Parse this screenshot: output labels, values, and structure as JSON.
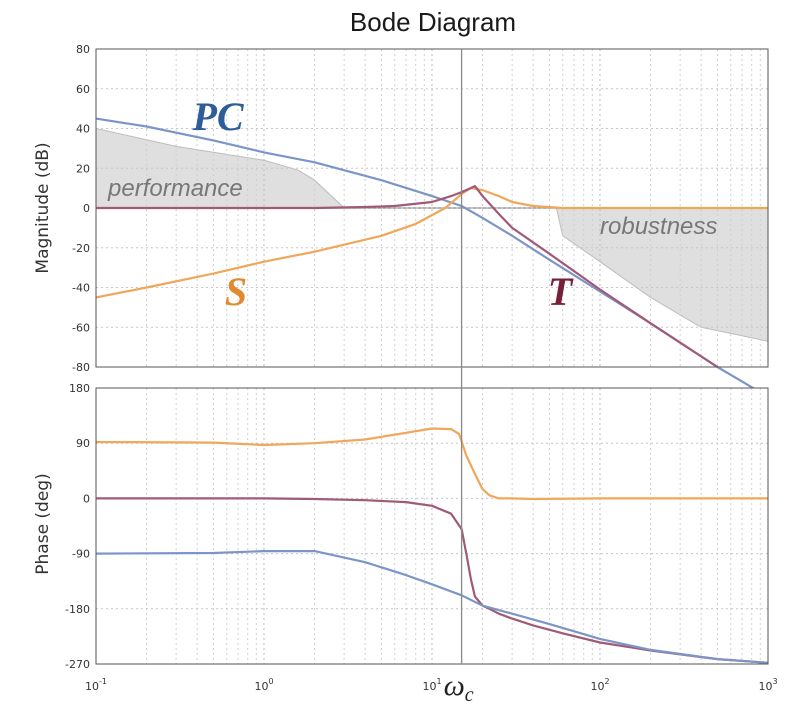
{
  "chart_data": {
    "type": "line",
    "title": "Bode Diagram",
    "xscale": "log",
    "xlim": [
      0.1,
      1000
    ],
    "x_ticks": [
      {
        "base": "10",
        "exp": "-1"
      },
      {
        "base": "10",
        "exp": "0"
      },
      {
        "base": "10",
        "exp": "1"
      },
      {
        "base": "10",
        "exp": "2"
      },
      {
        "base": "10",
        "exp": "3"
      }
    ],
    "crossover": {
      "x": 15,
      "label": "ω",
      "subscript": "c"
    },
    "grid": true,
    "magnitude_panel": {
      "ylabel": "Magnitude (dB)",
      "ylim": [
        -80,
        80
      ],
      "yticks": [
        "80",
        "60",
        "40",
        "20",
        "0",
        "-20",
        "-40",
        "-60",
        "-80"
      ],
      "series": [
        {
          "name": "PC",
          "color": "#7b95c8",
          "label_color": "#2f5d9a",
          "x": [
            0.1,
            0.2,
            0.5,
            1,
            2,
            5,
            10,
            15,
            20,
            30,
            50,
            100,
            200,
            500,
            1000
          ],
          "y": [
            45,
            41,
            34,
            28,
            23,
            14,
            6,
            1,
            -5,
            -14,
            -26,
            -42,
            -58,
            -80,
            -95
          ]
        },
        {
          "name": "S",
          "color": "#efa75a",
          "label_color": "#e0892e",
          "x": [
            0.1,
            0.2,
            0.5,
            1,
            2,
            5,
            8,
            12,
            15,
            17,
            20,
            25,
            30,
            40,
            60,
            100,
            1000
          ],
          "y": [
            -45,
            -40,
            -33,
            -27,
            -22,
            -14,
            -8,
            0,
            7,
            10,
            9,
            6,
            3,
            1,
            0,
            0,
            0
          ]
        },
        {
          "name": "T",
          "color": "#a05a78",
          "label_color": "#7a1f3a",
          "x": [
            0.1,
            1,
            2,
            4,
            6,
            10,
            13,
            15,
            17,
            18,
            20,
            25,
            30,
            50,
            100,
            200,
            500
          ],
          "y": [
            0,
            0,
            0,
            0.5,
            1,
            3,
            6,
            8,
            10,
            11,
            6,
            -3,
            -10,
            -23,
            -41,
            -58,
            -80
          ]
        }
      ],
      "regions": [
        {
          "name": "performance",
          "boundary_x": [
            0.1,
            0.3,
            1,
            1.6,
            2,
            3
          ],
          "boundary_y": [
            40,
            31,
            24,
            19,
            14,
            0
          ]
        },
        {
          "name": "robustness",
          "boundary_x": [
            55,
            60,
            100,
            200,
            400,
            1000
          ],
          "boundary_y": [
            0,
            -14,
            -27,
            -45,
            -60,
            -67
          ]
        }
      ]
    },
    "phase_panel": {
      "ylabel": "Phase (deg)",
      "ylim": [
        -270,
        180
      ],
      "yticks": [
        "180",
        "90",
        "0",
        "-90",
        "-180",
        "-270"
      ],
      "series": [
        {
          "name": "S",
          "color": "#efa75a",
          "x": [
            0.1,
            0.5,
            1,
            2,
            4,
            7,
            10,
            13,
            14.5,
            16,
            18,
            20,
            22,
            25,
            30,
            40,
            100,
            1000
          ],
          "y": [
            92,
            91,
            87,
            90,
            96,
            107,
            114,
            113,
            105,
            70,
            40,
            15,
            5,
            0,
            0,
            -1,
            0,
            0
          ]
        },
        {
          "name": "T",
          "color": "#a05a78",
          "x": [
            0.1,
            1,
            2,
            4,
            7,
            10,
            13,
            15,
            16,
            17,
            18,
            20,
            22,
            25,
            30,
            40,
            60,
            100,
            200,
            500,
            1000
          ],
          "y": [
            0,
            0,
            -1,
            -3,
            -6,
            -12,
            -25,
            -50,
            -90,
            -130,
            -160,
            -175,
            -180,
            -188,
            -196,
            -207,
            -220,
            -235,
            -248,
            -262,
            -268
          ]
        },
        {
          "name": "PC",
          "color": "#7b95c8",
          "x": [
            0.1,
            0.5,
            1,
            2,
            4,
            7,
            10,
            15,
            20,
            30,
            50,
            100,
            200,
            500,
            1000
          ],
          "y": [
            -90,
            -89,
            -86,
            -86,
            -104,
            -125,
            -140,
            -158,
            -175,
            -188,
            -205,
            -229,
            -247,
            -262,
            -268
          ]
        }
      ]
    }
  }
}
